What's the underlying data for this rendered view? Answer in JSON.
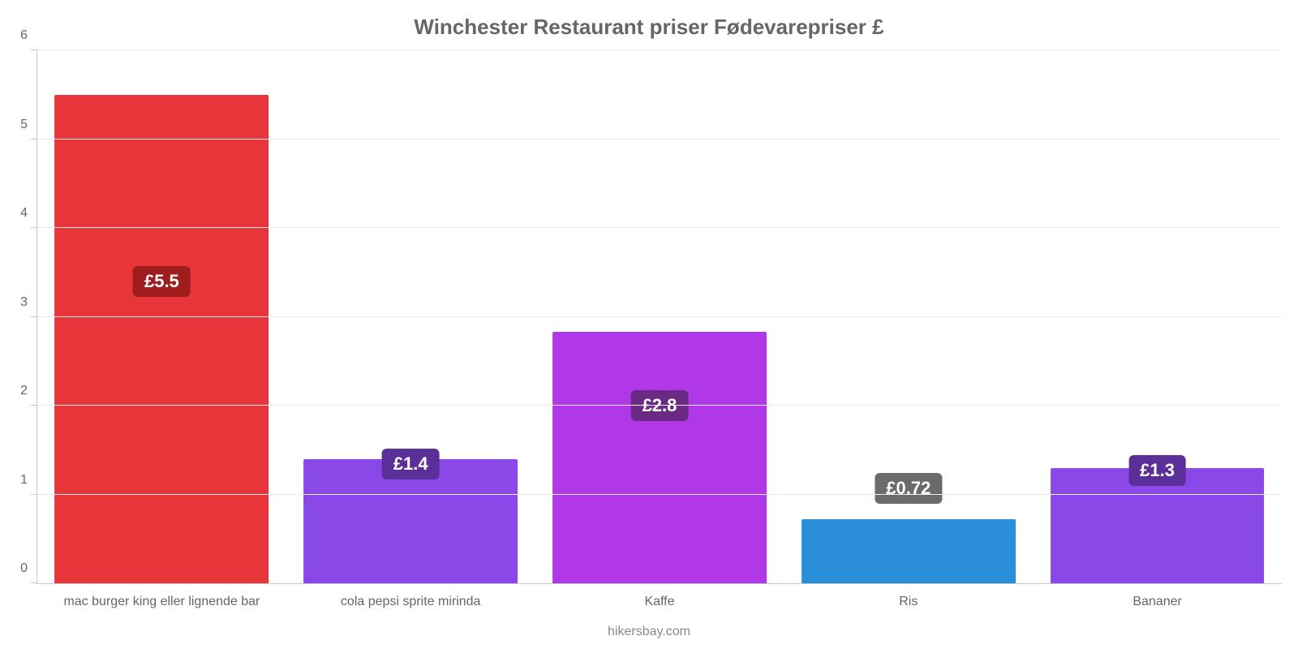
{
  "chart": {
    "type": "bar",
    "title": "Winchester Restaurant priser Fødevarepriser £",
    "title_fontsize": 26,
    "title_color": "#666666",
    "subtitle": "hikersbay.com",
    "subtitle_fontsize": 16,
    "subtitle_color": "#888888",
    "background_color": "#ffffff",
    "grid_color": "#e9e9e9",
    "axis_color": "#c8c8c8",
    "y": {
      "min": 0,
      "max": 6,
      "ticks": [
        0,
        1,
        2,
        3,
        4,
        5,
        6
      ],
      "label_color": "#666666",
      "label_fontsize": 16
    },
    "x_label_color": "#666666",
    "x_label_fontsize": 16,
    "bar_width_pct": 86,
    "badge_fontsize": 22,
    "series": [
      {
        "category": "mac burger king eller lignende bar",
        "value": 5.5,
        "display": "£5.5",
        "bar_color": "#e8353a",
        "badge_bg": "#a01d1d",
        "badge_y": 3.05
      },
      {
        "category": "cola pepsi sprite mirinda",
        "value": 1.4,
        "display": "£1.4",
        "bar_color": "#8a48e8",
        "badge_bg": "#5a2f97",
        "badge_y": 1.0
      },
      {
        "category": "Kaffe",
        "value": 2.83,
        "display": "£2.8",
        "bar_color": "#b038e8",
        "badge_bg": "#6a2a84",
        "badge_y": 1.65
      },
      {
        "category": "Ris",
        "value": 0.72,
        "display": "£0.72",
        "bar_color": "#2a8fd8",
        "badge_bg": "#6b6b6b",
        "badge_y": 0.72
      },
      {
        "category": "Bananer",
        "value": 1.3,
        "display": "£1.3",
        "bar_color": "#8a48e8",
        "badge_bg": "#5a2f97",
        "badge_y": 0.92
      }
    ]
  }
}
